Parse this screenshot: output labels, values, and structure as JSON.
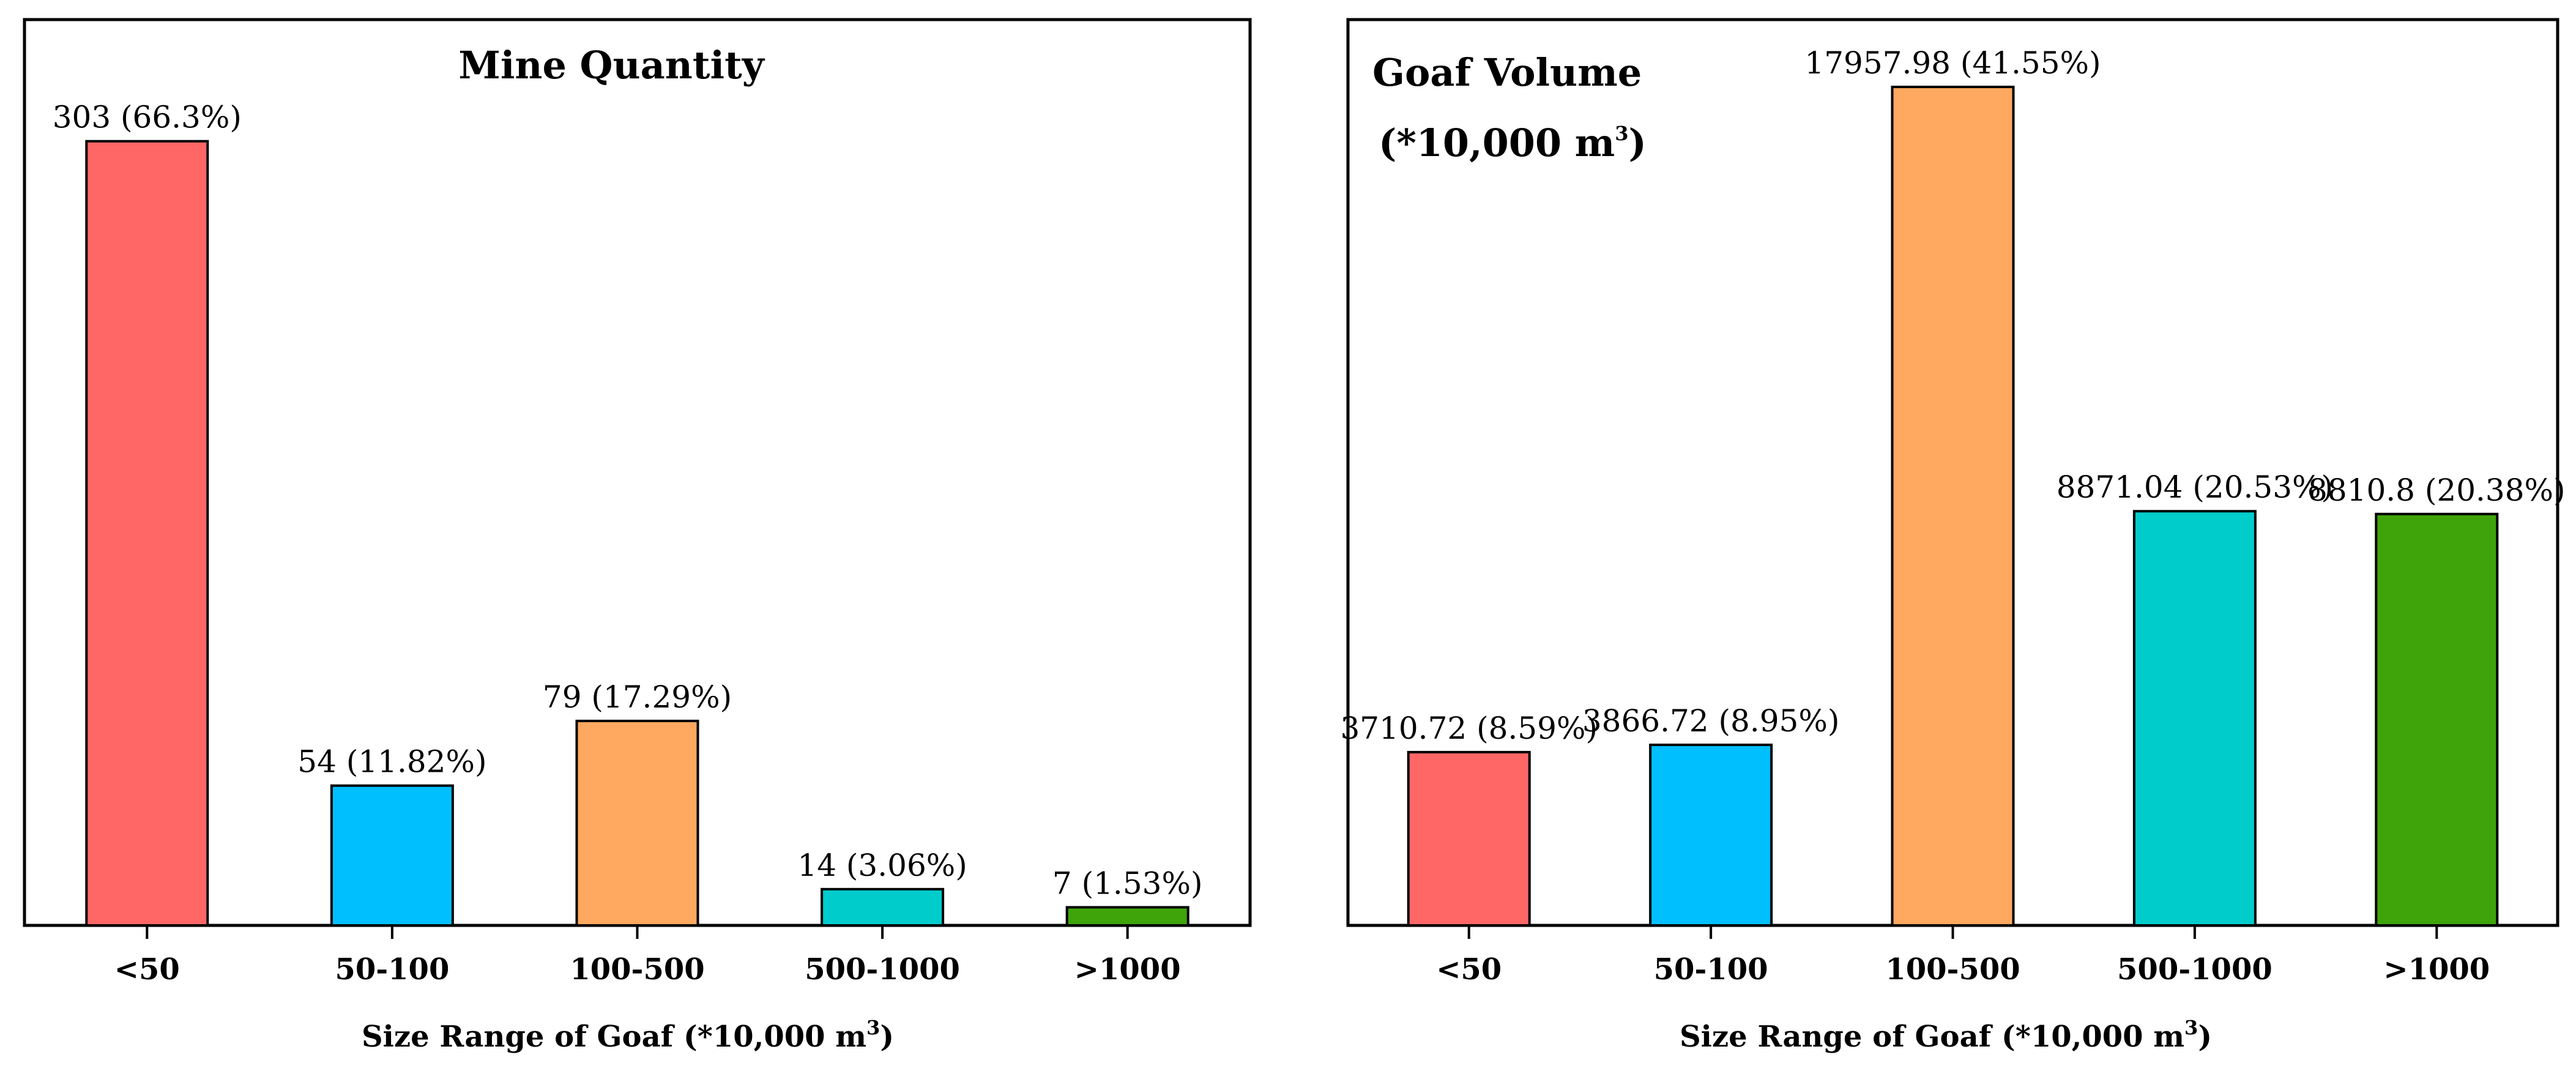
{
  "chart_data": [
    {
      "type": "bar",
      "title": "Mine Quantity",
      "subtitle": "",
      "categories": [
        "<50",
        "50-100",
        "100-500",
        "500-1000",
        ">1000"
      ],
      "values": [
        303,
        54,
        79,
        14,
        7
      ],
      "value_labels": [
        "303 (66.3%)",
        "54 (11.82%)",
        "79 (17.29%)",
        "14 (3.06%)",
        "7 (1.53%)"
      ],
      "colors": [
        "#ff6666",
        "#00bfff",
        "#ffa860",
        "#00cccc",
        "#3fa40a"
      ],
      "xlabel": "Size Range of Goaf (*10,000 m",
      "xlabel_sup": "3",
      "xlabel_suffix": ")",
      "ylabel": "",
      "ylim": [
        0,
        350
      ],
      "grid": false
    },
    {
      "type": "bar",
      "title": "Goaf Volume",
      "subtitle": "(*10,000 m",
      "subtitle_sup": "3",
      "subtitle_suffix": ")",
      "categories": [
        "<50",
        "50-100",
        "100-500",
        "500-1000",
        ">1000"
      ],
      "values": [
        3710.72,
        3866.72,
        17957.98,
        8871.04,
        8810.8
      ],
      "value_labels": [
        "3710.72 (8.59%)",
        "3866.72 (8.95%)",
        "17957.98 (41.55%)",
        "8871.04 (20.53%)",
        "8810.8 (20.38%)"
      ],
      "colors": [
        "#ff6666",
        "#00bfff",
        "#ffa860",
        "#00cccc",
        "#3fa40a"
      ],
      "xlabel": "Size Range of Goaf (*10,000 m",
      "xlabel_sup": "3",
      "xlabel_suffix": ")",
      "ylabel": "",
      "ylim": [
        0,
        19400
      ],
      "grid": false
    }
  ]
}
